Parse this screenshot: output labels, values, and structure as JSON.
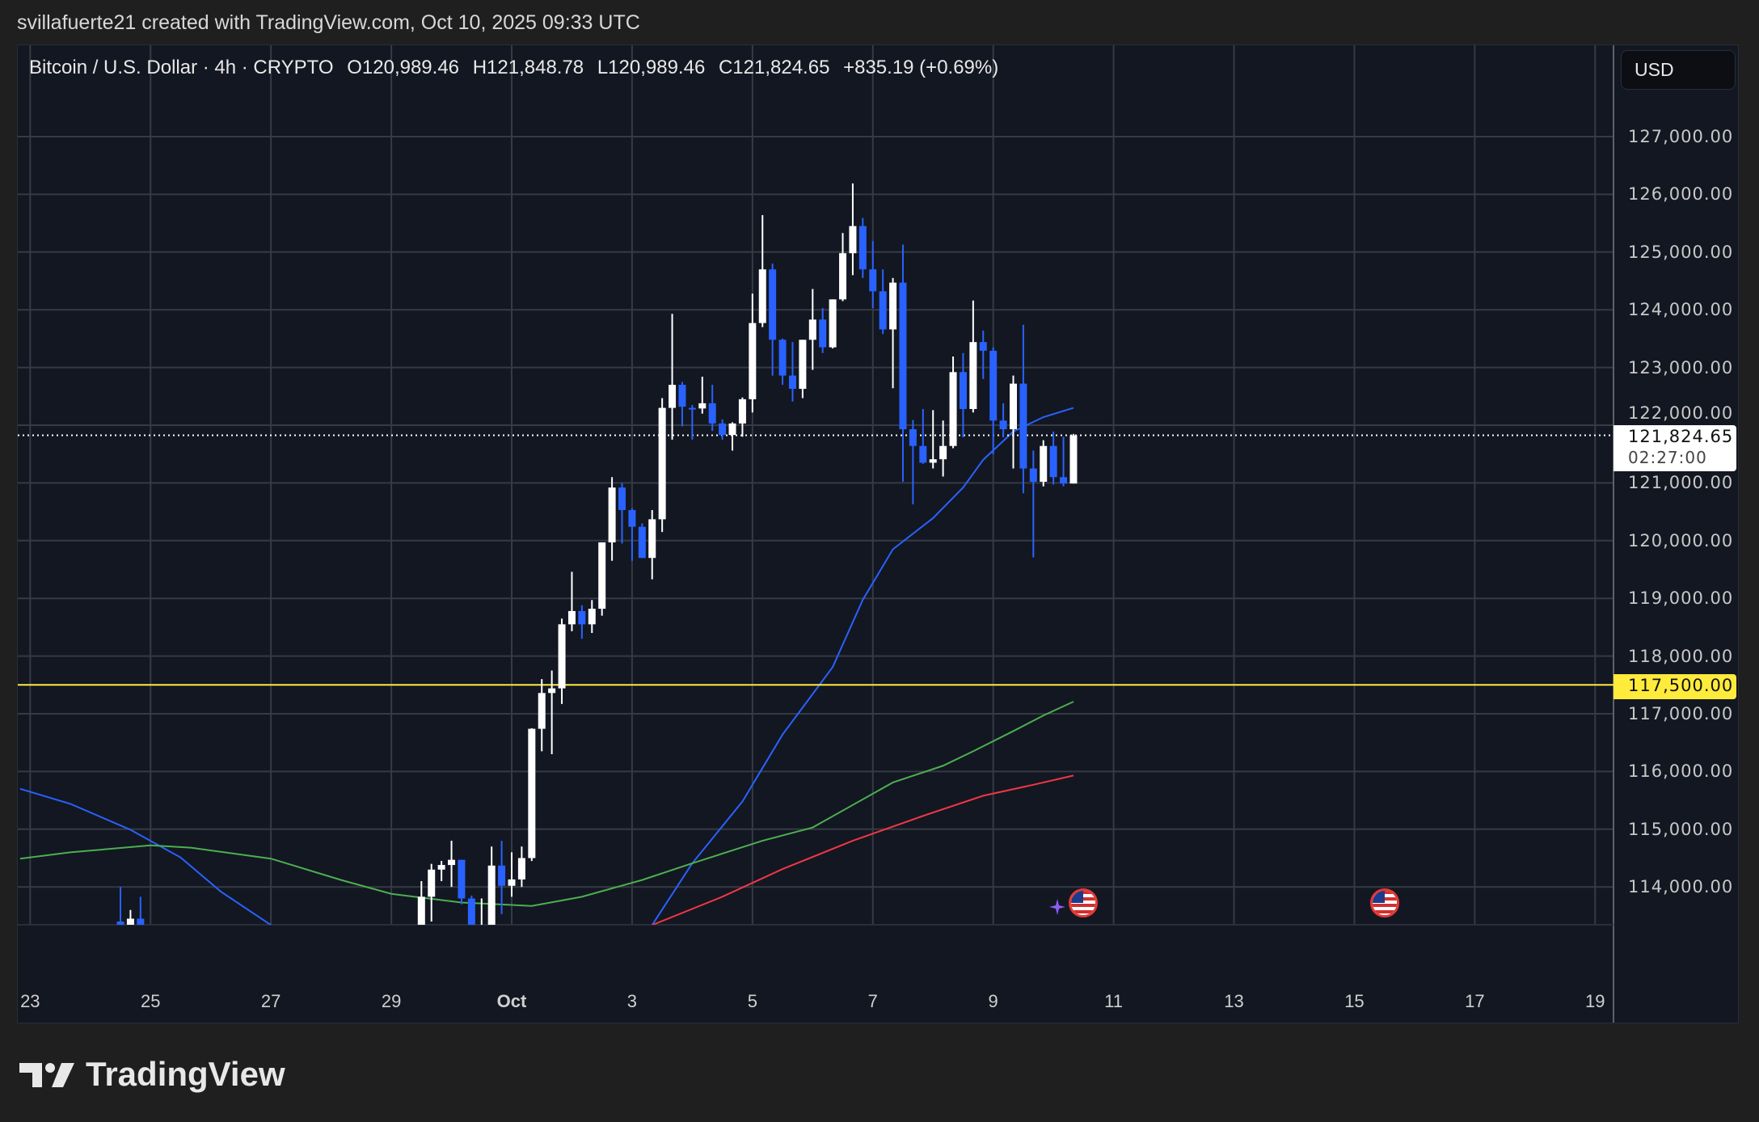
{
  "watermark": "svillafuerte21 created with TradingView.com, Oct 10, 2025 09:33 UTC",
  "legend": {
    "symbol": "Bitcoin / U.S. Dollar · 4h · CRYPTO",
    "open": "O120,989.46",
    "high": "H121,848.78",
    "low": "L120,989.46",
    "close": "C121,824.65",
    "change": "+835.19 (+0.69%)"
  },
  "currency_button": "USD",
  "price_axis": {
    "labels": [
      "127,000.00",
      "126,000.00",
      "125,000.00",
      "124,000.00",
      "123,000.00",
      "122,000.00",
      "121,000.00",
      "120,000.00",
      "119,000.00",
      "118,000.00",
      "117,000.00",
      "116,000.00",
      "115,000.00",
      "114,000.00"
    ],
    "values": [
      127000,
      126000,
      125000,
      124000,
      123000,
      122000,
      121000,
      120000,
      119000,
      118000,
      117000,
      116000,
      115000,
      114000
    ],
    "current_price": "121,824.65",
    "current_price_value": 121824.65,
    "countdown": "02:27:00",
    "level_label": "117,500.00",
    "level_value": 117500
  },
  "time_axis": {
    "labels": [
      "23",
      "25",
      "27",
      "29",
      "Oct",
      "3",
      "5",
      "7",
      "9",
      "11",
      "13",
      "15",
      "17",
      "19"
    ],
    "dates": [
      "2025-09-23",
      "2025-09-25",
      "2025-09-27",
      "2025-09-29",
      "2025-10-01",
      "2025-10-03",
      "2025-10-05",
      "2025-10-07",
      "2025-10-09",
      "2025-10-11",
      "2025-10-13",
      "2025-10-15",
      "2025-10-17",
      "2025-10-19"
    ]
  },
  "colors": {
    "up": "#ffffff",
    "down": "#2962ff",
    "ma_fast": "#2962ff",
    "ma_mid": "#4caf50",
    "ma_slow": "#f23645",
    "level": "#ffeb3b",
    "grid": "#363a45",
    "background": "#131722"
  },
  "chart_data": {
    "type": "candlestick",
    "symbol": "Bitcoin / U.S. Dollar",
    "interval": "4h",
    "ylim": [
      113500,
      128300
    ],
    "xlim": [
      "2025-09-22 20:00",
      "2025-10-19 12:00"
    ],
    "grid": true,
    "candles_columns": [
      "t",
      "open",
      "high",
      "low",
      "close"
    ],
    "candles": [
      [
        "2025-09-24 12:00",
        113400,
        114000,
        113000,
        113300
      ],
      [
        "2025-09-24 16:00",
        113300,
        113600,
        113000,
        113450
      ],
      [
        "2025-09-24 20:00",
        113450,
        113830,
        113000,
        113200
      ],
      [
        "2025-09-29 12:00",
        113300,
        114100,
        113000,
        113830
      ],
      [
        "2025-09-29 16:00",
        113830,
        114400,
        113400,
        114300
      ],
      [
        "2025-09-29 20:00",
        114300,
        114450,
        114100,
        114380
      ],
      [
        "2025-09-30 00:00",
        114380,
        114800,
        114000,
        114470
      ],
      [
        "2025-09-30 04:00",
        114470,
        114470,
        113700,
        113800
      ],
      [
        "2025-09-30 08:00",
        113800,
        113850,
        113000,
        113300
      ],
      [
        "2025-09-30 12:00",
        113200,
        113800,
        113000,
        113300
      ],
      [
        "2025-09-30 16:00",
        113300,
        114700,
        113000,
        114370
      ],
      [
        "2025-09-30 20:00",
        114370,
        114800,
        113530,
        114020
      ],
      [
        "2025-10-01 00:00",
        114020,
        114600,
        113830,
        114130
      ],
      [
        "2025-10-01 04:00",
        114130,
        114700,
        114000,
        114500
      ],
      [
        "2025-10-01 08:00",
        114500,
        116750,
        114450,
        116740
      ],
      [
        "2025-10-01 12:00",
        116740,
        117600,
        116350,
        117360
      ],
      [
        "2025-10-01 16:00",
        117360,
        117750,
        116300,
        117440
      ],
      [
        "2025-10-01 20:00",
        117440,
        118650,
        117170,
        118550
      ],
      [
        "2025-10-02 00:00",
        118550,
        119460,
        118430,
        118780
      ],
      [
        "2025-10-02 04:00",
        118780,
        118880,
        118300,
        118550
      ],
      [
        "2025-10-02 08:00",
        118550,
        118970,
        118400,
        118820
      ],
      [
        "2025-10-02 12:00",
        118820,
        119970,
        118700,
        119970
      ],
      [
        "2025-10-02 16:00",
        119970,
        121100,
        119650,
        120920
      ],
      [
        "2025-10-02 20:00",
        120920,
        121000,
        119950,
        120530
      ],
      [
        "2025-10-03 00:00",
        120530,
        120560,
        119650,
        120240
      ],
      [
        "2025-10-03 04:00",
        120240,
        120300,
        119700,
        119700
      ],
      [
        "2025-10-03 08:00",
        119700,
        120530,
        119330,
        120370
      ],
      [
        "2025-10-03 12:00",
        120370,
        122470,
        120150,
        122300
      ],
      [
        "2025-10-03 16:00",
        122300,
        123930,
        121750,
        122700
      ],
      [
        "2025-10-03 20:00",
        122700,
        122750,
        121980,
        122320
      ],
      [
        "2025-10-04 00:00",
        122300,
        122350,
        121750,
        122290
      ],
      [
        "2025-10-04 04:00",
        122290,
        122840,
        122200,
        122380
      ],
      [
        "2025-10-04 08:00",
        122380,
        122700,
        121900,
        122030
      ],
      [
        "2025-10-04 12:00",
        122030,
        122100,
        121750,
        121830
      ],
      [
        "2025-10-04 16:00",
        121830,
        122050,
        121560,
        122030
      ],
      [
        "2025-10-04 20:00",
        122030,
        122480,
        121800,
        122450
      ],
      [
        "2025-10-05 00:00",
        122450,
        124280,
        122220,
        123770
      ],
      [
        "2025-10-05 04:00",
        123770,
        125640,
        123700,
        124700
      ],
      [
        "2025-10-05 08:00",
        124700,
        124800,
        122860,
        123480
      ],
      [
        "2025-10-05 12:00",
        123480,
        123500,
        122700,
        122860
      ],
      [
        "2025-10-05 16:00",
        122860,
        123440,
        122410,
        122630
      ],
      [
        "2025-10-05 20:00",
        122630,
        123480,
        122470,
        123480
      ],
      [
        "2025-10-06 00:00",
        123480,
        124360,
        122960,
        123830
      ],
      [
        "2025-10-06 04:00",
        123830,
        124030,
        123250,
        123350
      ],
      [
        "2025-10-06 08:00",
        123350,
        124180,
        123330,
        124180
      ],
      [
        "2025-10-06 12:00",
        124180,
        125330,
        124150,
        124980
      ],
      [
        "2025-10-06 16:00",
        124980,
        126190,
        124600,
        125450
      ],
      [
        "2025-10-06 20:00",
        125450,
        125590,
        124550,
        124700
      ],
      [
        "2025-10-07 00:00",
        124700,
        125190,
        124030,
        124320
      ],
      [
        "2025-10-07 04:00",
        124320,
        124700,
        123580,
        123660
      ],
      [
        "2025-10-07 08:00",
        123660,
        124550,
        122640,
        124470
      ],
      [
        "2025-10-07 12:00",
        124470,
        125130,
        121020,
        121930
      ],
      [
        "2025-10-07 16:00",
        121930,
        122090,
        120630,
        121640
      ],
      [
        "2025-10-07 20:00",
        121640,
        122280,
        121330,
        121350
      ],
      [
        "2025-10-08 00:00",
        121350,
        122260,
        121250,
        121410
      ],
      [
        "2025-10-08 04:00",
        121410,
        122080,
        121110,
        121640
      ],
      [
        "2025-10-08 08:00",
        121640,
        123190,
        121600,
        122920
      ],
      [
        "2025-10-08 12:00",
        122920,
        123250,
        121790,
        122280
      ],
      [
        "2025-10-08 16:00",
        122280,
        124160,
        122220,
        123440
      ],
      [
        "2025-10-08 20:00",
        123440,
        123640,
        122800,
        123290
      ],
      [
        "2025-10-09 00:00",
        123290,
        123350,
        121500,
        122080
      ],
      [
        "2025-10-09 04:00",
        122080,
        122380,
        121790,
        121930
      ],
      [
        "2025-10-09 08:00",
        121930,
        122860,
        121250,
        122720
      ],
      [
        "2025-10-09 12:00",
        122720,
        123740,
        120820,
        121250
      ],
      [
        "2025-10-09 16:00",
        121250,
        121560,
        119710,
        121020
      ],
      [
        "2025-10-09 20:00",
        121020,
        121740,
        120940,
        121640
      ],
      [
        "2025-10-10 00:00",
        121640,
        121890,
        120970,
        121100
      ],
      [
        "2025-10-10 04:00",
        121100,
        121800,
        120940,
        120990
      ],
      [
        "2025-10-10 08:00",
        120989.46,
        121848.78,
        120989.46,
        121824.65
      ]
    ],
    "moving_averages": [
      {
        "color": "#2962ff",
        "points": [
          [
            "2025-09-22 20:00",
            115700
          ],
          [
            "2025-09-23 16:00",
            115440
          ],
          [
            "2025-09-24 16:00",
            114990
          ],
          [
            "2025-09-25 12:00",
            114510
          ],
          [
            "2025-09-26 04:00",
            113920
          ],
          [
            "2025-09-27 00:00",
            113340
          ],
          [
            "2025-09-30 12:00",
            111500
          ],
          [
            "2025-10-03 08:00",
            113340
          ],
          [
            "2025-10-04 00:00",
            114410
          ],
          [
            "2025-10-04 20:00",
            115480
          ],
          [
            "2025-10-05 12:00",
            116640
          ],
          [
            "2025-10-06 08:00",
            117810
          ],
          [
            "2025-10-06 20:00",
            118975
          ],
          [
            "2025-10-07 08:00",
            119850
          ],
          [
            "2025-10-08 00:00",
            120390
          ],
          [
            "2025-10-08 12:00",
            120920
          ],
          [
            "2025-10-08 20:00",
            121400
          ],
          [
            "2025-10-09 08:00",
            121890
          ],
          [
            "2025-10-09 20:00",
            122140
          ],
          [
            "2025-10-10 08:00",
            122300
          ]
        ]
      },
      {
        "color": "#4caf50",
        "points": [
          [
            "2025-09-22 20:00",
            114490
          ],
          [
            "2025-09-23 16:00",
            114600
          ],
          [
            "2025-09-25 00:00",
            114720
          ],
          [
            "2025-09-25 16:00",
            114680
          ],
          [
            "2025-09-27 00:00",
            114490
          ],
          [
            "2025-09-28 04:00",
            114120
          ],
          [
            "2025-09-29 00:00",
            113880
          ],
          [
            "2025-09-30 04:00",
            113730
          ],
          [
            "2025-10-01 08:00",
            113670
          ],
          [
            "2025-10-02 04:00",
            113830
          ],
          [
            "2025-10-03 04:00",
            114120
          ],
          [
            "2025-10-04 00:00",
            114410
          ],
          [
            "2025-10-05 04:00",
            114800
          ],
          [
            "2025-10-06 00:00",
            115030
          ],
          [
            "2025-10-06 16:00",
            115420
          ],
          [
            "2025-10-07 08:00",
            115810
          ],
          [
            "2025-10-08 04:00",
            116100
          ],
          [
            "2025-10-08 16:00",
            116350
          ],
          [
            "2025-10-09 08:00",
            116700
          ],
          [
            "2025-10-09 20:00",
            116970
          ],
          [
            "2025-10-10 08:00",
            117210
          ]
        ]
      },
      {
        "color": "#f23645",
        "points": [
          [
            "2025-10-03 04:00",
            113200
          ],
          [
            "2025-10-03 08:00",
            113340
          ],
          [
            "2025-10-04 12:00",
            113830
          ],
          [
            "2025-10-05 12:00",
            114310
          ],
          [
            "2025-10-06 16:00",
            114800
          ],
          [
            "2025-10-07 20:00",
            115230
          ],
          [
            "2025-10-08 20:00",
            115580
          ],
          [
            "2025-10-09 16:00",
            115770
          ],
          [
            "2025-10-10 08:00",
            115930
          ]
        ]
      }
    ],
    "horizontal_levels": [
      117500
    ],
    "events": [
      {
        "date": "2025-10-10 12:00",
        "icon": "us-flag-icon"
      },
      {
        "date": "2025-10-15 12:00",
        "icon": "us-flag-icon"
      }
    ]
  },
  "branding": "TradingView"
}
